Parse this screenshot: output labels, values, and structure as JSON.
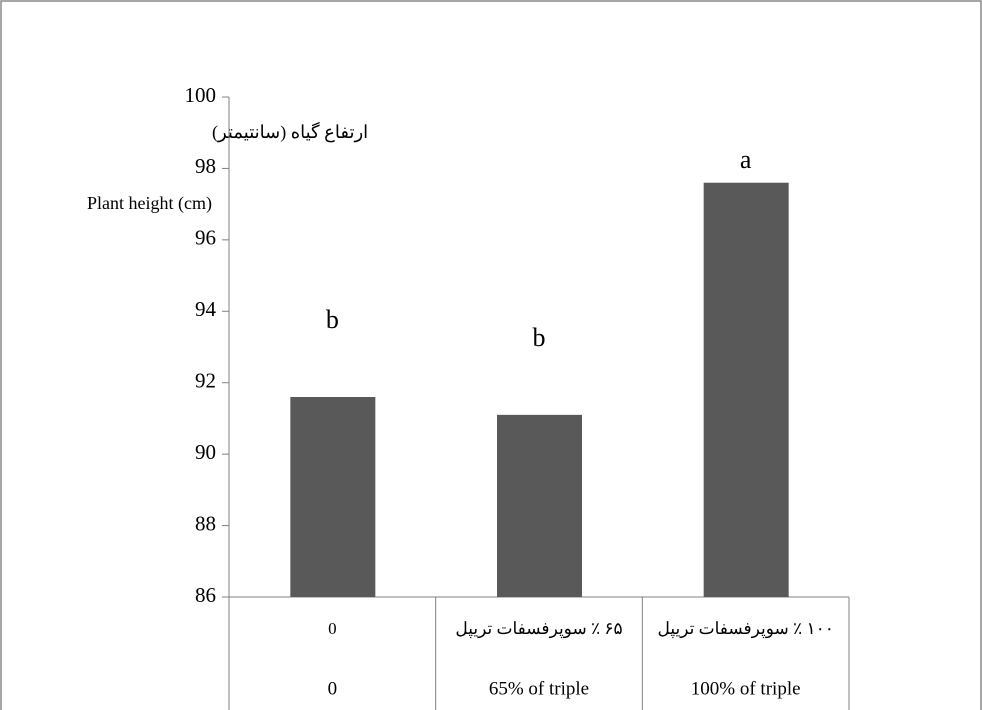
{
  "chart_data": {
    "type": "bar",
    "ylabel": [
      "ارتفاع گیاه (سانتیمتر)",
      "Plant height (cm)"
    ],
    "categories": [
      [
        "0",
        "0"
      ],
      [
        "۶۵ ٪ سوپرفسفات تریپل",
        "65% of triple"
      ],
      [
        "۱۰۰ ٪ سوپرفسفات تریپل",
        "100% of triple"
      ]
    ],
    "values": [
      91.6,
      91.1,
      97.6
    ],
    "annotations": [
      "b",
      "b",
      "a"
    ],
    "color": "#595959",
    "ylim": [
      86,
      100
    ],
    "yticks": [
      86,
      88,
      90,
      92,
      94,
      96,
      98,
      100
    ],
    "grid": false
  }
}
